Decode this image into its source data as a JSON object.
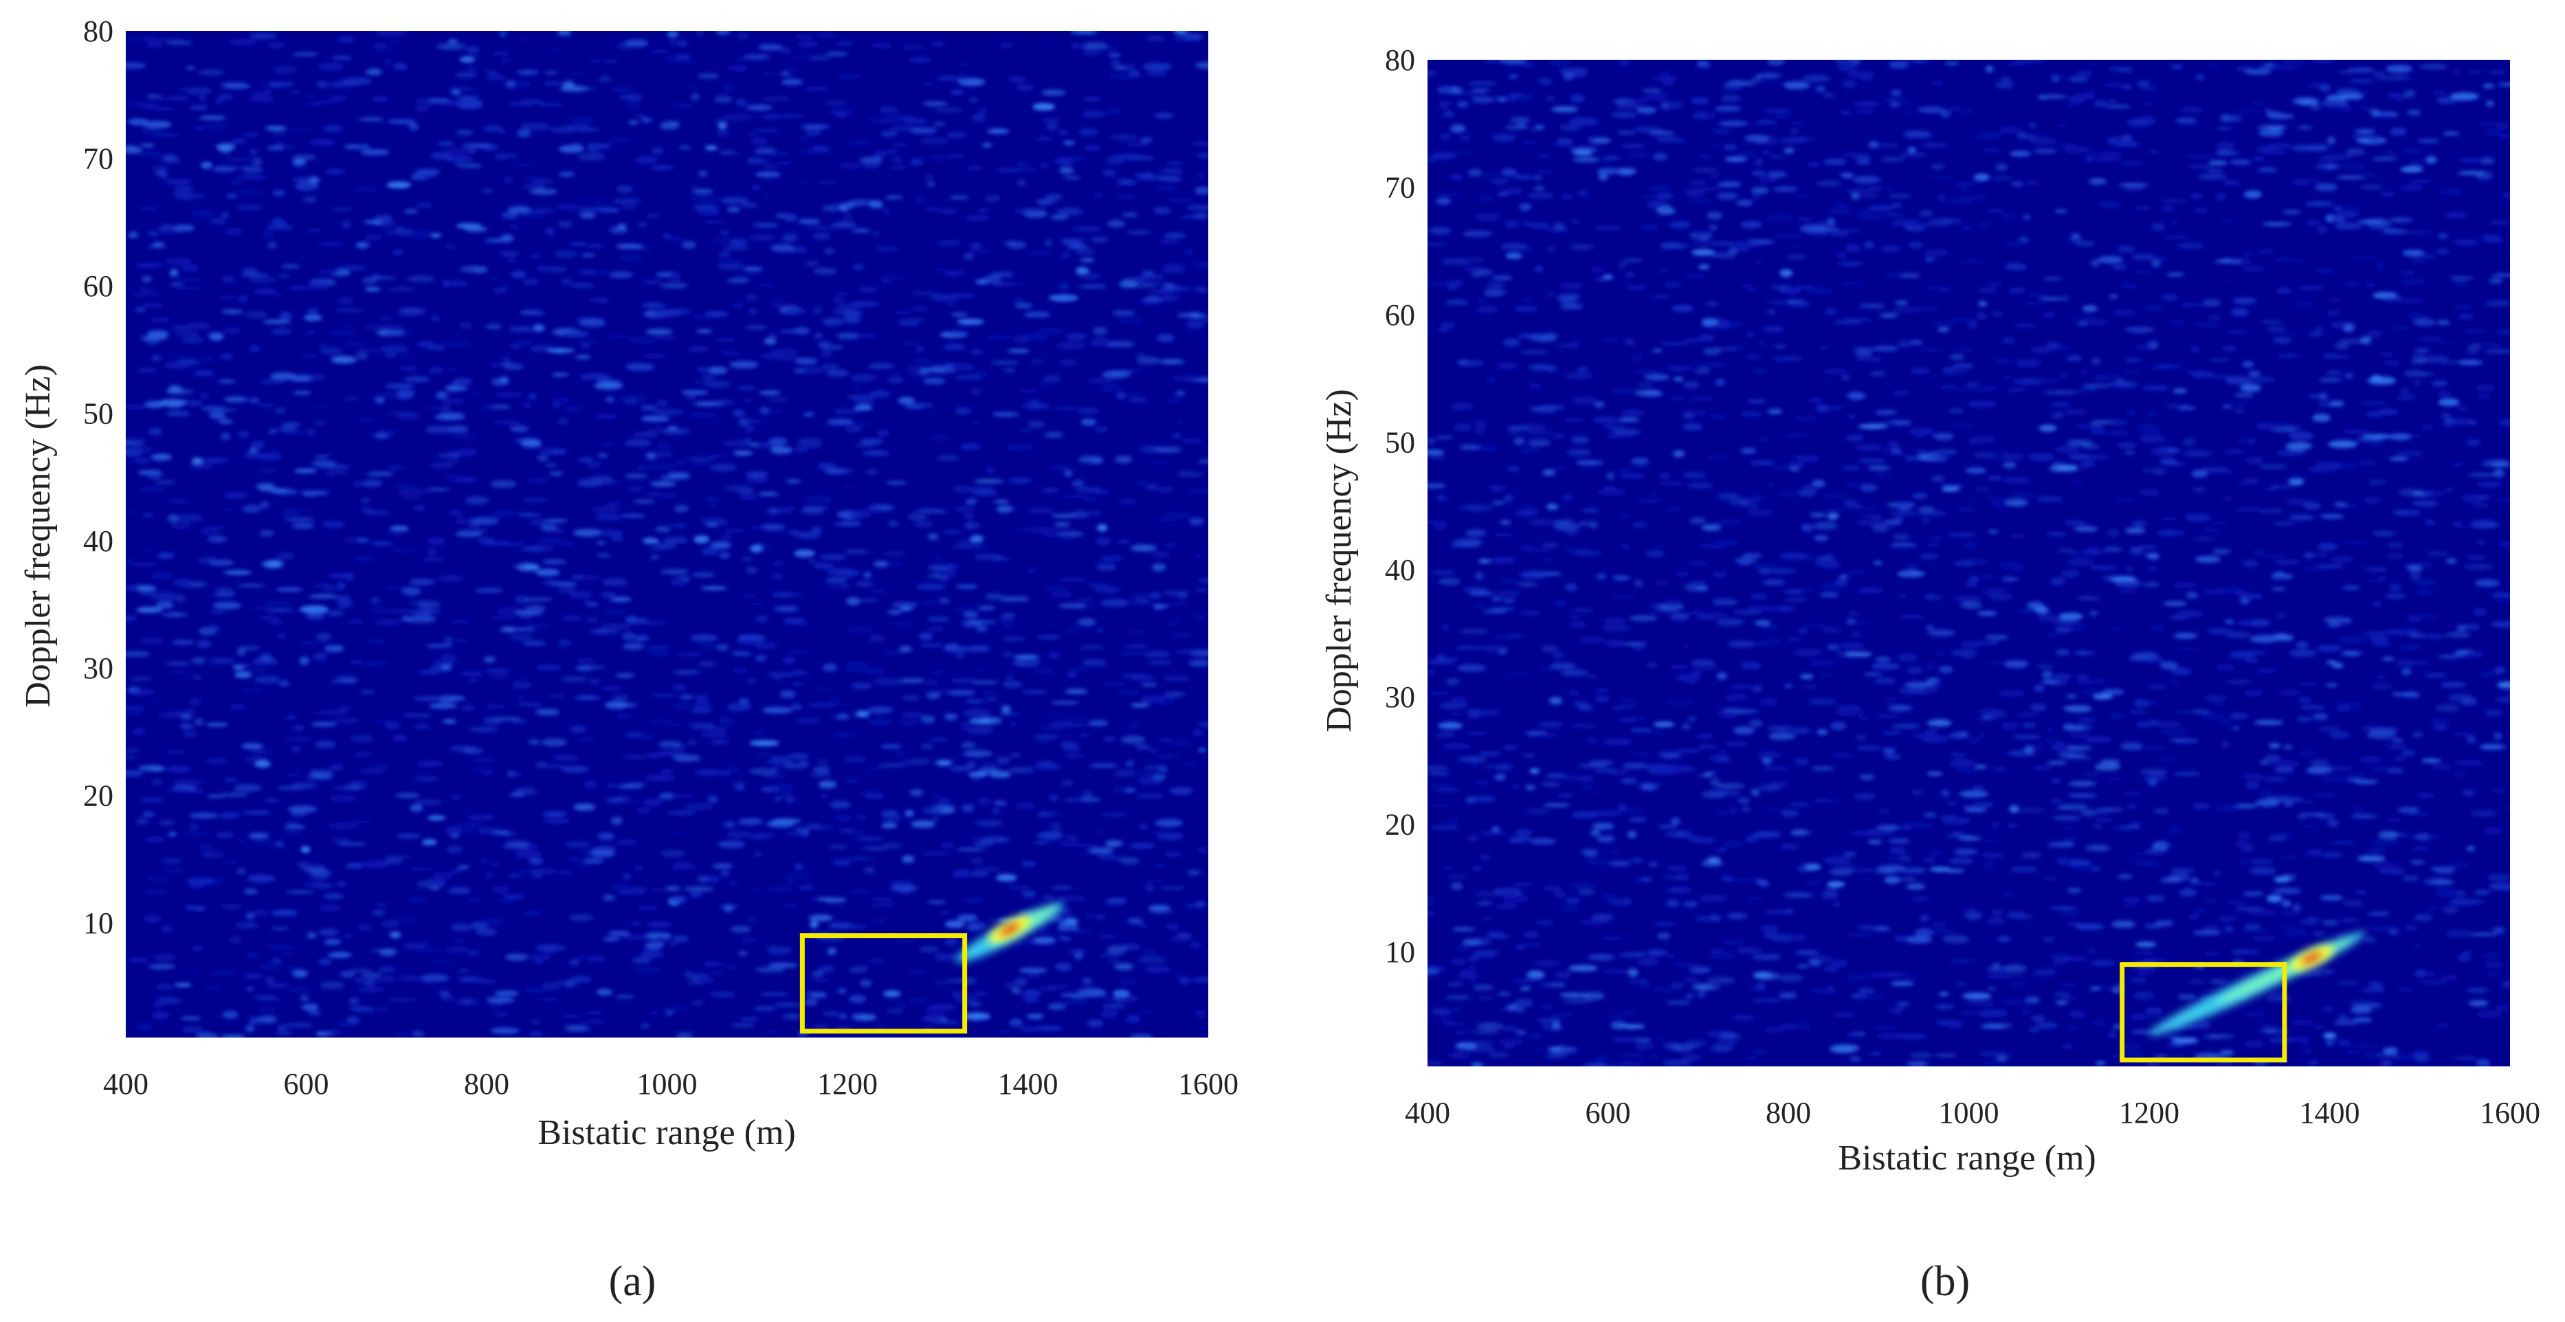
{
  "colors": {
    "background": "#00008f",
    "noise_low": "#0a14b4",
    "noise_high": "#3c8cff",
    "target_cyan": "#46f0ff",
    "target_yellow": "#ffff3c",
    "target_red": "#e61414",
    "box": "#f5eb00",
    "axis_text": "#222222"
  },
  "chart_data": [
    {
      "type": "heatmap",
      "panel_label": "(a)",
      "xlabel": "Bistatic range (m)",
      "ylabel": "Doppler frequency (Hz)",
      "xlim": [
        400,
        1600
      ],
      "ylim": [
        1,
        80
      ],
      "x_ticks": [
        "400",
        "600",
        "800",
        "1000",
        "1200",
        "1400",
        "1600"
      ],
      "y_ticks": [
        "10",
        "20",
        "30",
        "40",
        "50",
        "60",
        "70",
        "80"
      ],
      "grid": false,
      "colormap": "jet",
      "target_peak": {
        "bistatic_range_m": 1380,
        "doppler_hz": 9.5
      },
      "target_trail": {
        "from": {
          "bistatic_range_m": 1320,
          "doppler_hz": 7
        },
        "to": {
          "bistatic_range_m": 1440,
          "doppler_hz": 11.5
        }
      },
      "highlight_box": {
        "x_range_m": [
          1150,
          1330
        ],
        "y_range_hz": [
          1.5,
          9
        ]
      }
    },
    {
      "type": "heatmap",
      "panel_label": "(b)",
      "xlabel": "Bistatic range (m)",
      "ylabel": "Doppler frequency (Hz)",
      "xlim": [
        400,
        1600
      ],
      "ylim": [
        1,
        80
      ],
      "x_ticks": [
        "400",
        "600",
        "800",
        "1000",
        "1200",
        "1400",
        "1600"
      ],
      "y_ticks": [
        "10",
        "20",
        "30",
        "40",
        "50",
        "60",
        "70",
        "80"
      ],
      "grid": false,
      "colormap": "jet",
      "target_peak": {
        "bistatic_range_m": 1380,
        "doppler_hz": 9.5
      },
      "target_trail": {
        "from": {
          "bistatic_range_m": 1200,
          "doppler_hz": 3.5
        },
        "to": {
          "bistatic_range_m": 1440,
          "doppler_hz": 11.5
        }
      },
      "highlight_box": {
        "x_range_m": [
          1170,
          1350
        ],
        "y_range_hz": [
          1.5,
          9
        ]
      }
    }
  ]
}
